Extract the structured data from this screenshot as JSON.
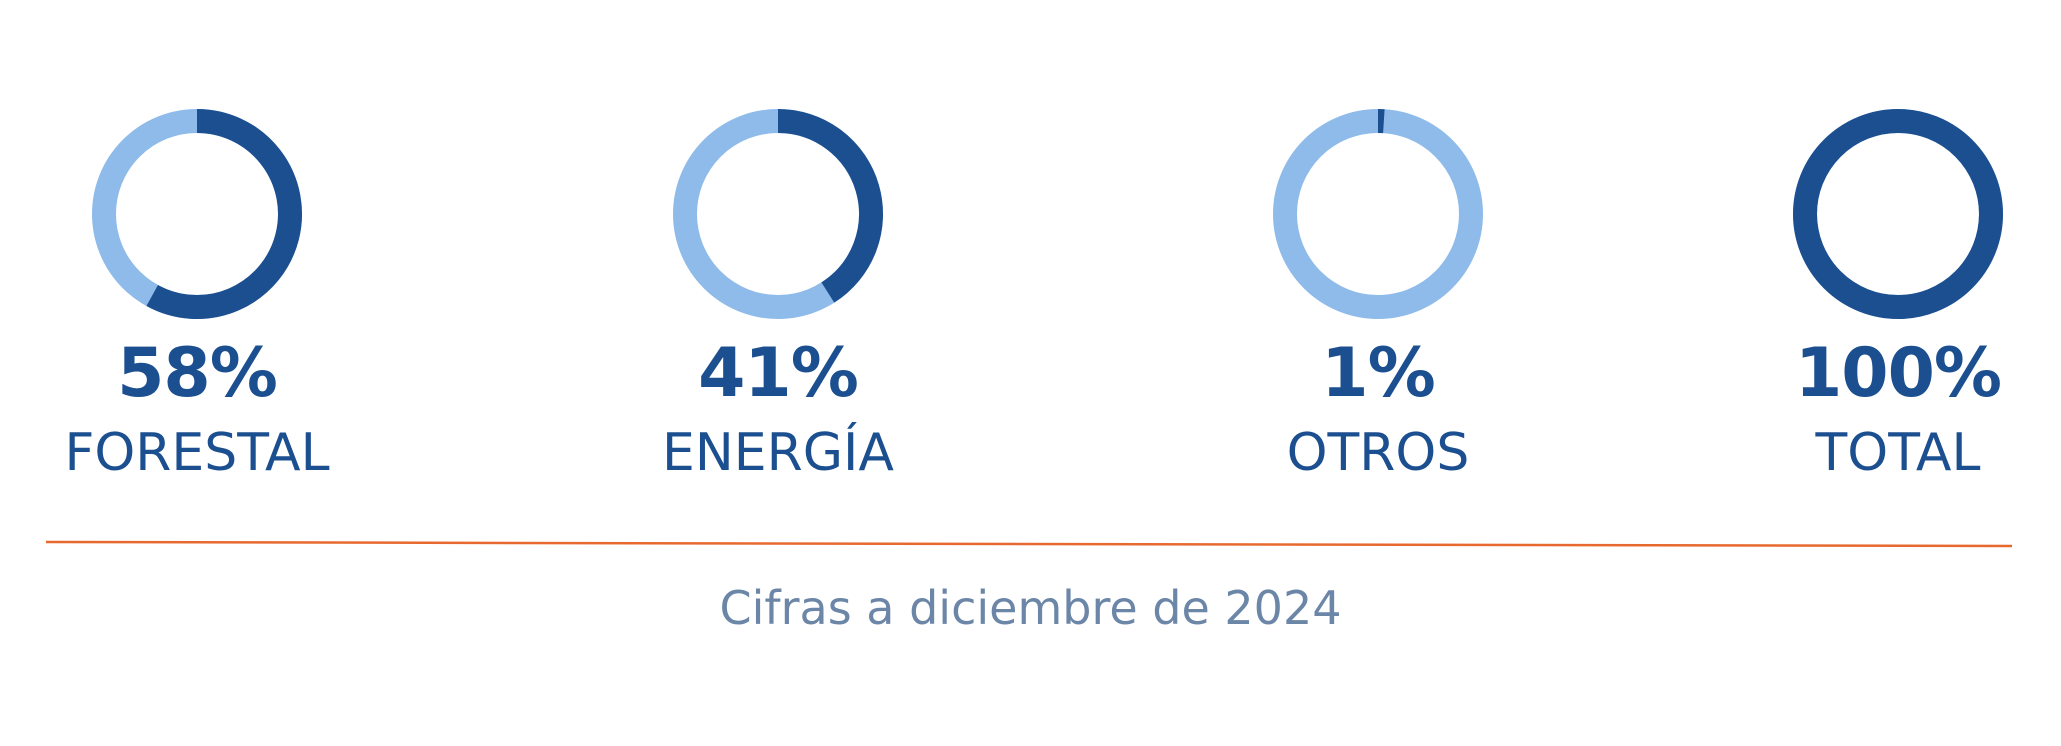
{
  "colors": {
    "primary": "#1b4f8f",
    "secondary": "#8ebbea",
    "divider": "#e8692f",
    "caption": "#6c86a8"
  },
  "chart_data": {
    "type": "pie",
    "items": [
      {
        "percent_label": "58%",
        "label": "FORESTAL",
        "value": 58
      },
      {
        "percent_label": "41%",
        "label": "ENERGÍA",
        "value": 41
      },
      {
        "percent_label": "1%",
        "label": "OTROS",
        "value": 1
      },
      {
        "percent_label": "100%",
        "label": "TOTAL",
        "value": 100
      }
    ]
  },
  "caption": "Cifras a diciembre de 2024"
}
